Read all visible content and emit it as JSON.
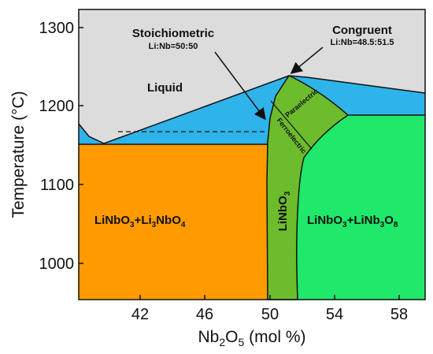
{
  "axes": {
    "x_title": {
      "main": "Nb",
      "sub1": "2",
      "mid": "O",
      "sub2": "5",
      "tail": " (mol %)"
    },
    "y_title": "Temperature (°C)",
    "x_ticks": [
      "42",
      "46",
      "50",
      "54",
      "58"
    ],
    "y_ticks": [
      "1300",
      "1200",
      "1100",
      "1000"
    ]
  },
  "regions": {
    "liquid": "Liquid",
    "left_phase": {
      "a": "LiNbO",
      "a_sub": "3",
      "plus": "+Li",
      "b_sub": "3",
      "b": "NbO",
      "c_sub": "4"
    },
    "right_phase": {
      "a": "LiNbO",
      "a_sub": "3",
      "plus": "+LiNb",
      "b_sub": "3",
      "b": "O",
      "c_sub": "8"
    },
    "center_phase": {
      "a": "LiNbO",
      "a_sub": "3"
    },
    "paraelectric": "Paraelectric",
    "ferroelectric": "Ferroelectric"
  },
  "annotations": {
    "stoichiometric": {
      "title": "Stoichiometric",
      "ratio": "Li:Nb=50:50"
    },
    "congruent": {
      "title": "Congruent",
      "ratio": "Li:Nb=48.5:51.5"
    }
  },
  "colors": {
    "liquid": "#dcdcdc",
    "liquid_plus_solid": "#2eb4ea",
    "left_phase": "#ff9a00",
    "right_phase": "#1fe86b",
    "center_phase": "#6cbc2c",
    "paraelectric": "#6cbc2c"
  }
}
